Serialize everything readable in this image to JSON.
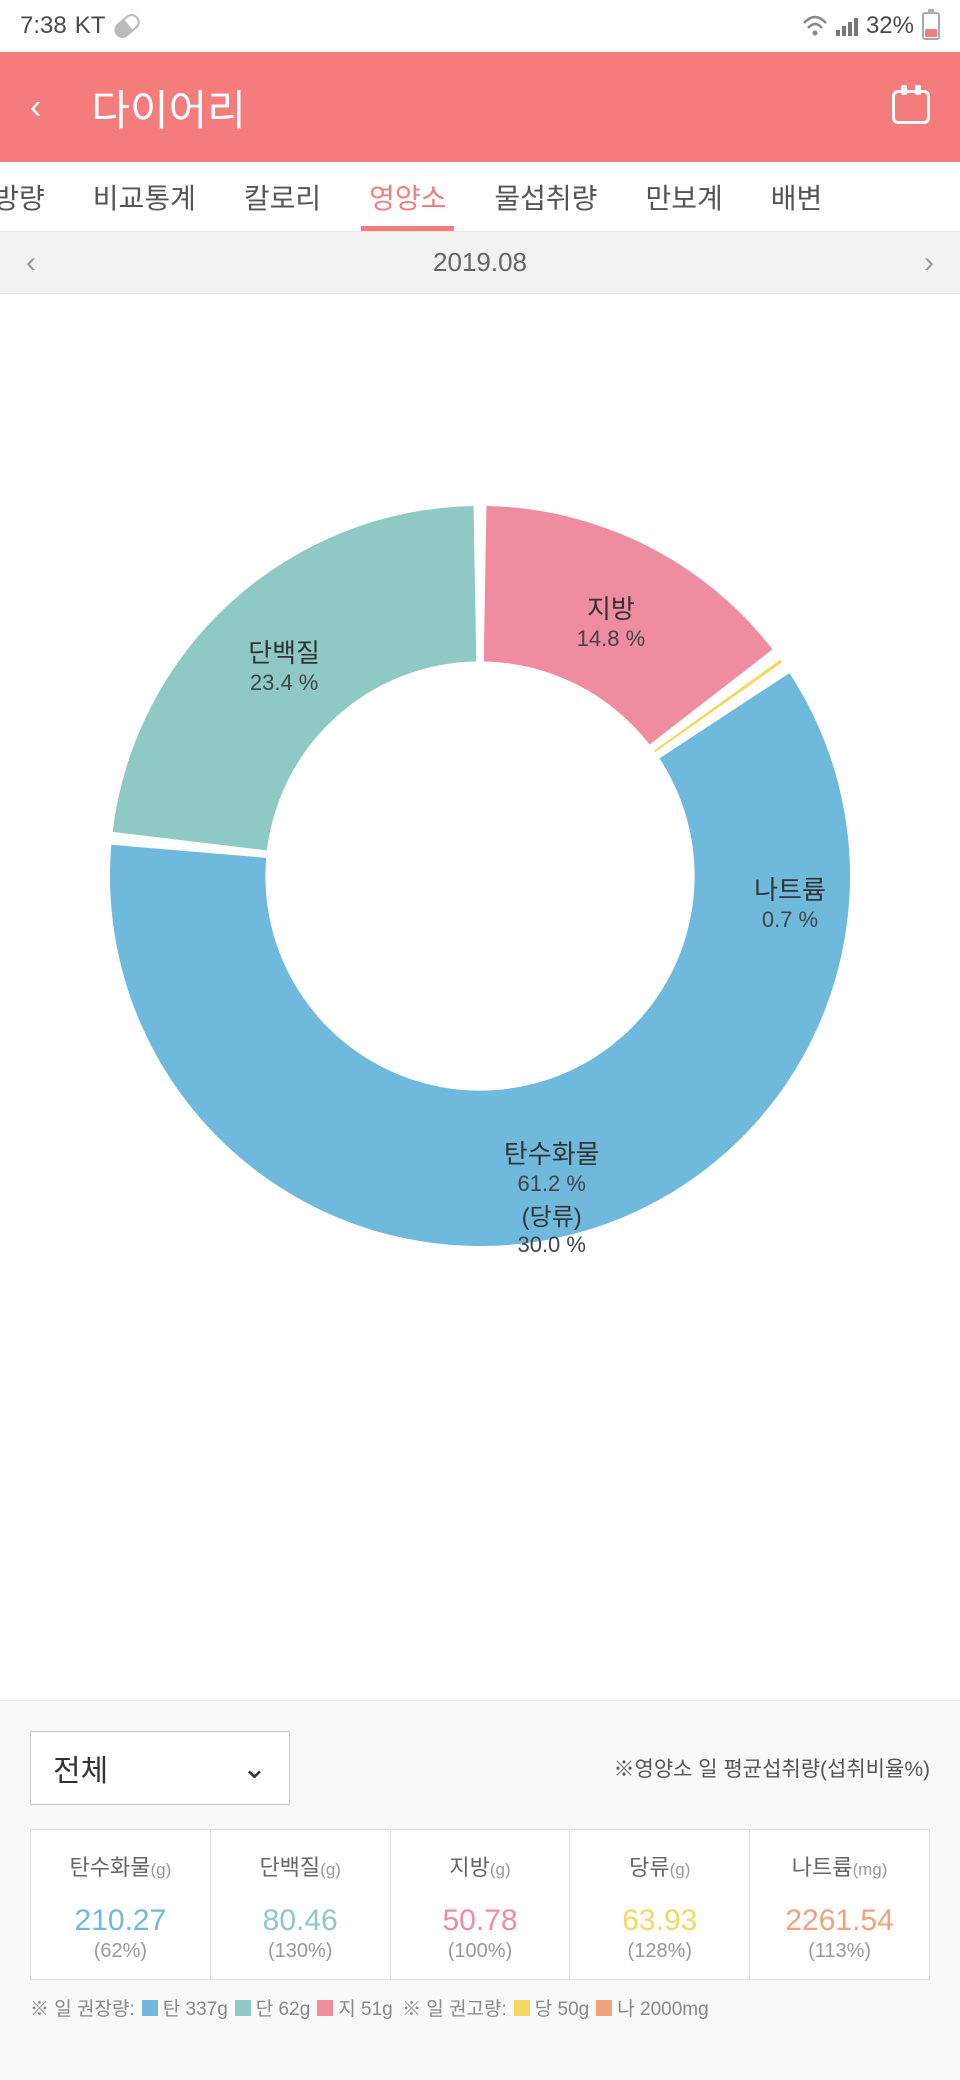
{
  "status": {
    "time": "7:38",
    "carrier": "KT",
    "battery_pct": "32%"
  },
  "header": {
    "title": "다이어리"
  },
  "tabs": {
    "items": [
      "|방량",
      "비교통계",
      "칼로리",
      "영양소",
      "물섭취량",
      "만보계",
      "배변"
    ],
    "active_index": 3
  },
  "date_nav": {
    "label": "2019.08"
  },
  "donut": {
    "type": "donut",
    "inner_radius_ratio": 0.58,
    "gap_deg": 2,
    "background": "#ffffff",
    "segments": [
      {
        "name": "지방",
        "pct": 14.8,
        "color": "#ef8ca0"
      },
      {
        "name": "나트륨",
        "pct": 0.7,
        "color": "#f6d761"
      },
      {
        "name": "탄수화물",
        "pct": 61.2,
        "sub_name": "(당류)",
        "sub_pct": "30.0 %",
        "color": "#6fb9dd"
      },
      {
        "name": "단백질",
        "pct": 23.4,
        "color": "#8ecac3"
      }
    ],
    "label_font_name": 26,
    "label_font_pct": 22,
    "label_color": "#333333"
  },
  "bottom": {
    "selector": "전체",
    "hint": "※영양소 일 평균섭취량(섭취비율%)"
  },
  "table": {
    "columns": [
      {
        "label": "탄수화물",
        "unit": "(g)",
        "value": "210.27",
        "pct": "(62%)",
        "color": "#6fb9dd"
      },
      {
        "label": "단백질",
        "unit": "(g)",
        "value": "80.46",
        "pct": "(130%)",
        "color": "#8ecac3"
      },
      {
        "label": "지방",
        "unit": "(g)",
        "value": "50.78",
        "pct": "(100%)",
        "color": "#ef8ca0"
      },
      {
        "label": "당류",
        "unit": "(g)",
        "value": "63.93",
        "pct": "(128%)",
        "color": "#f6d761"
      },
      {
        "label": "나트륨",
        "unit": "(mg)",
        "value": "2261.54",
        "pct": "(113%)",
        "color": "#f2a27a"
      }
    ]
  },
  "legend": {
    "prefix1": "※ 일 권장량:",
    "items1": [
      {
        "color": "#6fb9dd",
        "text": "탄 337g"
      },
      {
        "color": "#8ecac3",
        "text": "단 62g"
      },
      {
        "color": "#ef8ca0",
        "text": "지 51g"
      }
    ],
    "prefix2": "※ 일 권고량:",
    "items2": [
      {
        "color": "#f6d761",
        "text": "당 50g"
      },
      {
        "color": "#f2a27a",
        "text": "나 2000mg"
      }
    ]
  }
}
